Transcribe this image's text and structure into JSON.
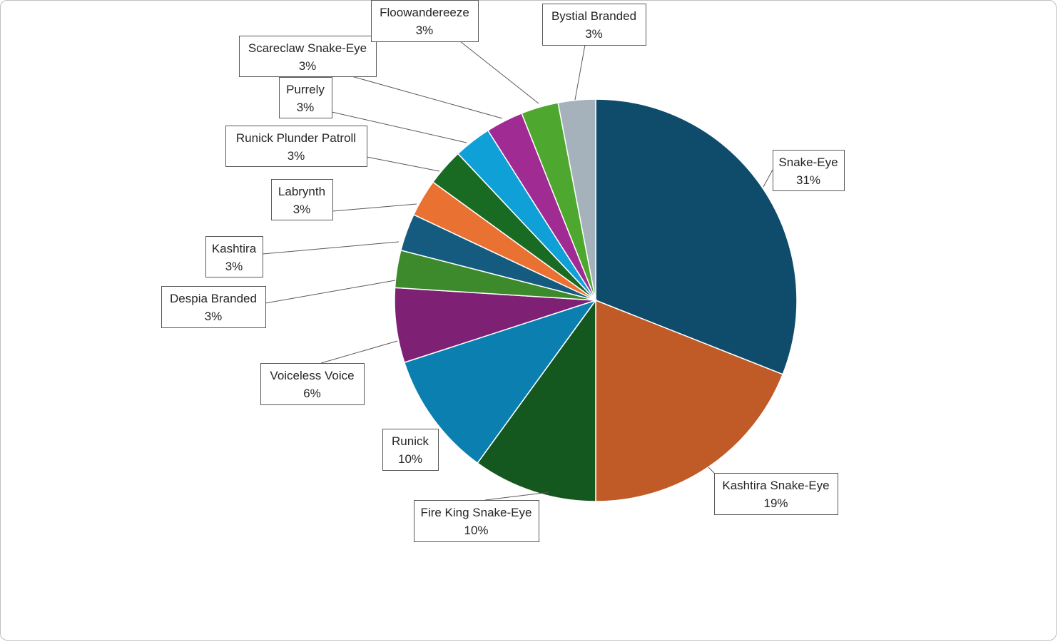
{
  "chart_data": {
    "type": "pie",
    "title": "",
    "legend": "none",
    "start_angle_deg": 0,
    "direction": "clockwise",
    "slices": [
      {
        "label": "Snake-Eye",
        "value": 31,
        "display": "31%",
        "color": "#0f4c6b"
      },
      {
        "label": "Kashtira Snake-Eye",
        "value": 19,
        "display": "19%",
        "color": "#c05a27"
      },
      {
        "label": "Fire King Snake-Eye",
        "value": 10,
        "display": "10%",
        "color": "#15581f"
      },
      {
        "label": "Runick",
        "value": 10,
        "display": "10%",
        "color": "#0a7fb0"
      },
      {
        "label": "Voiceless Voice",
        "value": 6,
        "display": "6%",
        "color": "#7e2175"
      },
      {
        "label": "Despia Branded",
        "value": 3,
        "display": "3%",
        "color": "#3c8a2b"
      },
      {
        "label": "Kashtira",
        "value": 3,
        "display": "3%",
        "color": "#155b80"
      },
      {
        "label": "Labrynth",
        "value": 3,
        "display": "3%",
        "color": "#e97132"
      },
      {
        "label": "Runick Plunder Patroll",
        "value": 3,
        "display": "3%",
        "color": "#196b24"
      },
      {
        "label": "Purrely",
        "value": 3,
        "display": "3%",
        "color": "#10a0d8"
      },
      {
        "label": "Scareclaw Snake-Eye",
        "value": 3,
        "display": "3%",
        "color": "#a02b93"
      },
      {
        "label": "Floowandereeze",
        "value": 3,
        "display": "3%",
        "color": "#4ea72e"
      },
      {
        "label": "Bystial Branded",
        "value": 3,
        "display": "3%",
        "color": "#a5b1bb"
      }
    ]
  }
}
